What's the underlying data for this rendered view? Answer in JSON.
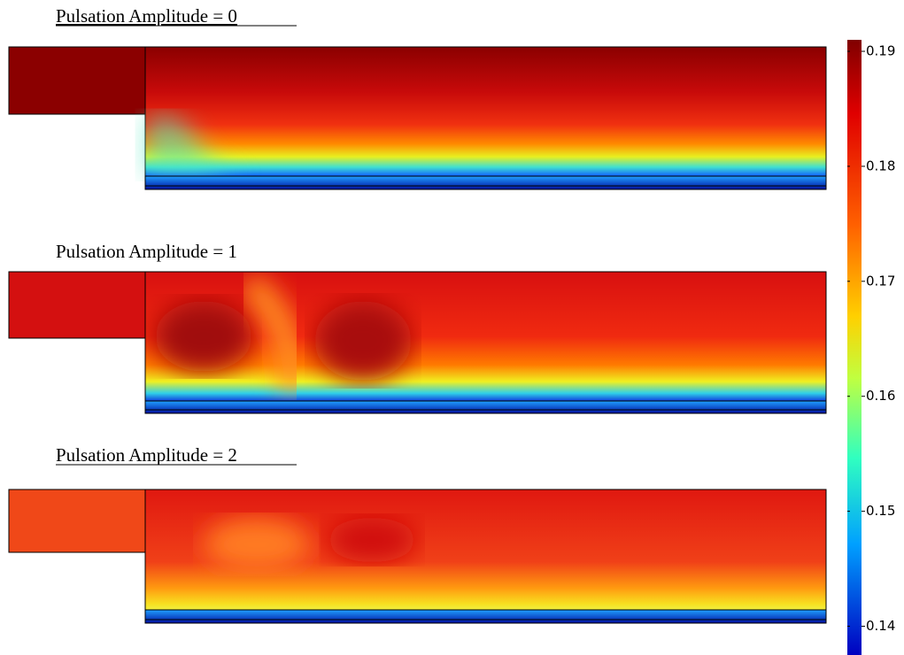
{
  "panels": [
    {
      "title": "Pulsation Amplitude = 0"
    },
    {
      "title": "Pulsation Amplitude = 1"
    },
    {
      "title": "Pulsation Amplitude = 2"
    }
  ],
  "colorbar": {
    "range": [
      0.1375,
      0.191
    ],
    "ticks": [
      0.19,
      0.18,
      0.17,
      0.16,
      0.15,
      0.14
    ]
  }
}
